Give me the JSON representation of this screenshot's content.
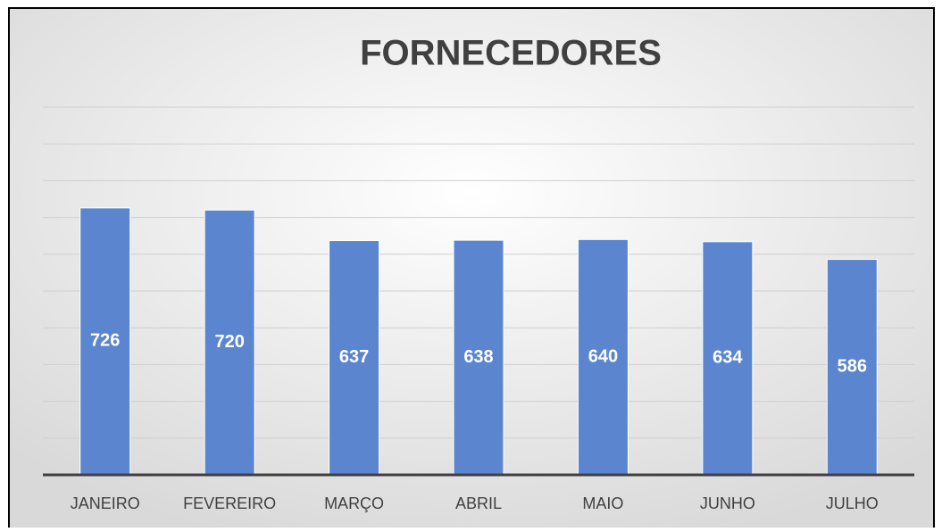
{
  "chart_data": {
    "type": "bar",
    "title": "FORNECEDORES",
    "categories": [
      "JANEIRO",
      "FEVEREIRO",
      "MARÇO",
      "ABRIL",
      "MAIO",
      "JUNHO",
      "JULHO"
    ],
    "values": [
      726,
      720,
      637,
      638,
      640,
      634,
      586
    ],
    "color": "#5b86cf",
    "ylim": [
      0,
      1000
    ],
    "yticks": [
      0,
      100,
      200,
      300,
      400,
      500,
      600,
      700,
      800,
      900,
      1000
    ],
    "grid": true
  }
}
